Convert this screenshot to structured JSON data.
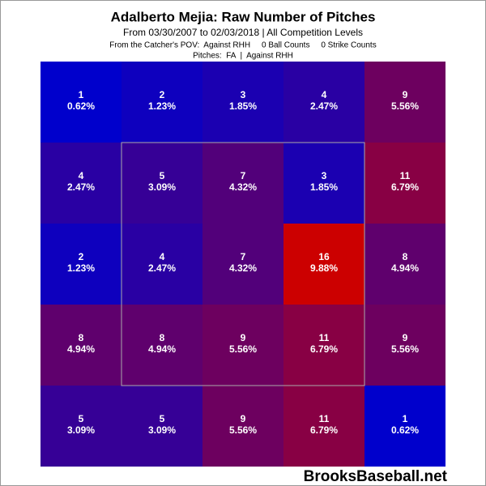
{
  "chart_data": {
    "type": "heatmap",
    "title": "Adalberto Mejia: Raw Number of Pitches",
    "subtitle": "From 03/30/2007 to 02/03/2018 | All Competition Levels",
    "pov_line": "From the Catcher's POV:  Against RHH     0 Ball Counts     0 Strike Counts",
    "pitches_line": "Pitches:  FA  |  Against RHH",
    "watermark": "BrooksBaseball.net",
    "values": [
      [
        1,
        2,
        3,
        4,
        9
      ],
      [
        4,
        5,
        7,
        3,
        11
      ],
      [
        2,
        4,
        7,
        16,
        8
      ],
      [
        8,
        8,
        9,
        11,
        9
      ],
      [
        5,
        5,
        9,
        11,
        1
      ]
    ],
    "shares": [
      [
        0.62,
        1.23,
        1.85,
        2.47,
        5.56
      ],
      [
        2.47,
        3.09,
        4.32,
        1.85,
        6.79
      ],
      [
        1.23,
        2.47,
        4.32,
        9.88,
        4.94
      ],
      [
        4.94,
        4.94,
        5.56,
        6.79,
        5.56
      ],
      [
        3.09,
        3.09,
        5.56,
        6.79,
        0.62
      ]
    ],
    "share_labels": [
      [
        "0.62%",
        "1.23%",
        "1.85%",
        "2.47%",
        "5.56%"
      ],
      [
        "2.47%",
        "3.09%",
        "4.32%",
        "1.85%",
        "6.79%"
      ],
      [
        "1.23%",
        "2.47%",
        "4.32%",
        "9.88%",
        "4.94%"
      ],
      [
        "4.94%",
        "4.94%",
        "5.56%",
        "6.79%",
        "5.56%"
      ],
      [
        "3.09%",
        "3.09%",
        "5.56%",
        "6.79%",
        "0.62%"
      ]
    ],
    "color_low": "#0000cc",
    "color_high": "#cc0000"
  }
}
